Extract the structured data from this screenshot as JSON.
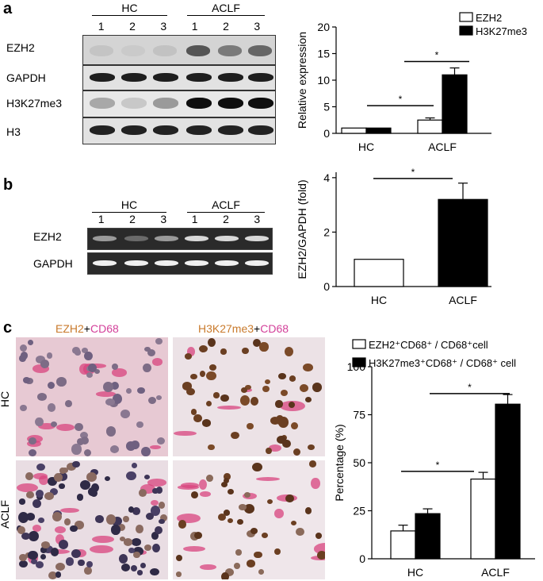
{
  "panel_a": {
    "letter": "a",
    "groups": [
      "HC",
      "ACLF"
    ],
    "lanes": [
      "1",
      "2",
      "3",
      "1",
      "2",
      "3"
    ],
    "blot_labels": [
      "EZH2",
      "GAPDH",
      "H3K27me3",
      "H3"
    ]
  },
  "panel_b": {
    "letter": "b",
    "groups": [
      "HC",
      "ACLF"
    ],
    "lanes": [
      "1",
      "2",
      "3",
      "1",
      "2",
      "3"
    ],
    "gel_labels": [
      "EZH2",
      "GAPDH"
    ]
  },
  "panel_c": {
    "letter": "c",
    "col1_a": "EZH2",
    "col1_plus": "+",
    "col1_b": "CD68",
    "col2_a": "H3K27me3",
    "col2_plus": "+",
    "col2_b": "CD68",
    "row_labels": [
      "HC",
      "ACLF"
    ]
  },
  "colors": {
    "brown": "#c97a2c",
    "magenta": "#d3409a"
  },
  "chart_data": [
    {
      "type": "bar",
      "categories": [
        "HC",
        "ACLF"
      ],
      "series": [
        {
          "name": "EZH2",
          "values": [
            1.0,
            2.5
          ],
          "errors": [
            0,
            0.4
          ],
          "fill": "#ffffff"
        },
        {
          "name": "H3K27me3",
          "values": [
            1.0,
            11.0
          ],
          "errors": [
            0,
            1.3
          ],
          "fill": "#000000"
        }
      ],
      "ylabel": "Relative expression",
      "xlabel": "",
      "ylim": [
        0,
        20
      ],
      "yticks": [
        0,
        5,
        10,
        15,
        20
      ],
      "legend": "top-right",
      "significance": [
        "*",
        "*"
      ],
      "grid": false
    },
    {
      "type": "bar",
      "categories": [
        "HC",
        "ACLF"
      ],
      "series": [
        {
          "name": "",
          "values": [
            1.0,
            3.2
          ],
          "errors": [
            0,
            0.6
          ],
          "fills": [
            "#ffffff",
            "#000000"
          ]
        }
      ],
      "ylabel": "EZH2/GAPDH (fold)",
      "xlabel": "",
      "ylim": [
        0,
        4.2
      ],
      "yticks": [
        0,
        2,
        4
      ],
      "significance": [
        "*"
      ],
      "grid": false
    },
    {
      "type": "bar",
      "categories": [
        "HC",
        "ACLF"
      ],
      "series": [
        {
          "name": "EZH2⁺CD68⁺ / CD68⁺cell",
          "values": [
            14.5,
            41.5
          ],
          "errors": [
            3,
            3.5
          ],
          "fill": "#ffffff"
        },
        {
          "name": "H3K27me3⁺CD68⁺ / CD68⁺ cell",
          "values": [
            23.5,
            80.5
          ],
          "errors": [
            2.5,
            5
          ],
          "fill": "#000000"
        }
      ],
      "ylabel": "Percentage (%)",
      "xlabel": "",
      "ylim": [
        0,
        100
      ],
      "yticks": [
        0,
        25,
        50,
        75,
        100
      ],
      "legend": "top",
      "significance": [
        "*",
        "*"
      ],
      "grid": false
    }
  ]
}
